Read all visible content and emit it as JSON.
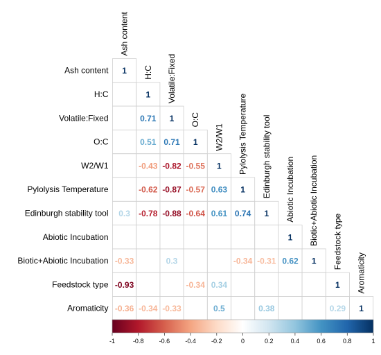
{
  "chart_data": {
    "type": "heatmap",
    "subtype": "correlation-matrix-lower-triangle",
    "variables": [
      "Ash content",
      "H:C",
      "Volatile:Fixed",
      "O:C",
      "W2/W1",
      "Pylolysis Temperature",
      "Edinburgh stability tool",
      "Abiotic Incubation",
      "Biotic+Abiotic Incubation",
      "Feedstock type",
      "Aromaticity"
    ],
    "matrix": [
      [
        1,
        null,
        null,
        null,
        null,
        null,
        null,
        null,
        null,
        null,
        null
      ],
      [
        null,
        1,
        null,
        null,
        null,
        null,
        null,
        null,
        null,
        null,
        null
      ],
      [
        null,
        0.71,
        1,
        null,
        null,
        null,
        null,
        null,
        null,
        null,
        null
      ],
      [
        null,
        0.51,
        0.71,
        1,
        null,
        null,
        null,
        null,
        null,
        null,
        null
      ],
      [
        null,
        -0.43,
        -0.82,
        -0.55,
        1,
        null,
        null,
        null,
        null,
        null,
        null
      ],
      [
        null,
        -0.62,
        -0.87,
        -0.57,
        0.63,
        1,
        null,
        null,
        null,
        null,
        null
      ],
      [
        0.3,
        -0.78,
        -0.88,
        -0.64,
        0.61,
        0.74,
        1,
        null,
        null,
        null,
        null
      ],
      [
        null,
        null,
        null,
        null,
        null,
        null,
        null,
        1,
        null,
        null,
        null
      ],
      [
        -0.33,
        null,
        0.3,
        null,
        null,
        -0.34,
        -0.31,
        0.62,
        1,
        null,
        null
      ],
      [
        -0.93,
        null,
        null,
        -0.34,
        0.34,
        null,
        null,
        null,
        null,
        1,
        null
      ],
      [
        -0.36,
        -0.34,
        -0.33,
        null,
        0.5,
        null,
        0.38,
        null,
        null,
        0.29,
        1
      ]
    ],
    "colorbar": {
      "ticks": [
        "-1",
        "-0.8",
        "-0.6",
        "-0.4",
        "-0.2",
        "0",
        "0.2",
        "0.4",
        "0.6",
        "0.8",
        "1"
      ],
      "range": [
        -1,
        1
      ],
      "placement": "bottom"
    },
    "colors": {
      "negative": "#67001f",
      "neutral": "#ffffff",
      "positive": "#053061",
      "grid": "#d0d0d0"
    }
  }
}
